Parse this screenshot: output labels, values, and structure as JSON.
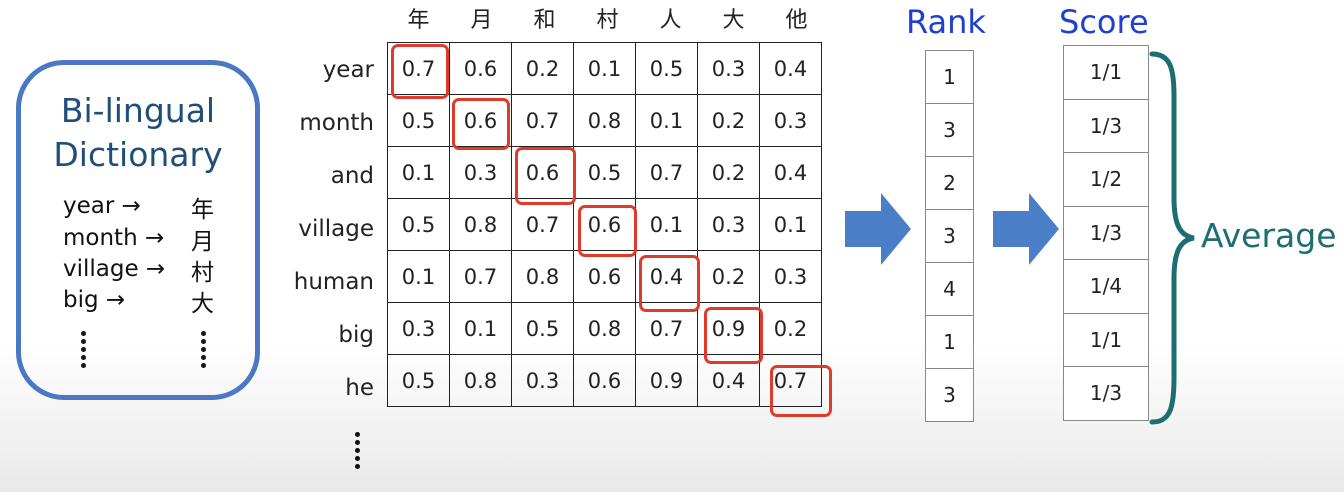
{
  "dictionary": {
    "title_line1": "Bi-lingual",
    "title_line2": "Dictionary",
    "entries": [
      {
        "en": "year →",
        "ja": "年"
      },
      {
        "en": "month →",
        "ja": "月"
      },
      {
        "en": "village →",
        "ja": "村"
      },
      {
        "en": "big →",
        "ja": "大"
      }
    ]
  },
  "matrix": {
    "columns": [
      "年",
      "月",
      "和",
      "村",
      "人",
      "大",
      "他"
    ],
    "rows": [
      {
        "label": "year",
        "values": [
          "0.7",
          "0.6",
          "0.2",
          "0.1",
          "0.5",
          "0.3",
          "0.4"
        ],
        "highlight_col": 0
      },
      {
        "label": "month",
        "values": [
          "0.5",
          "0.6",
          "0.7",
          "0.8",
          "0.1",
          "0.2",
          "0.3"
        ],
        "highlight_col": 1
      },
      {
        "label": "and",
        "values": [
          "0.1",
          "0.3",
          "0.6",
          "0.5",
          "0.7",
          "0.2",
          "0.4"
        ],
        "highlight_col": 2
      },
      {
        "label": "village",
        "values": [
          "0.5",
          "0.8",
          "0.7",
          "0.6",
          "0.1",
          "0.3",
          "0.1"
        ],
        "highlight_col": 3
      },
      {
        "label": "human",
        "values": [
          "0.1",
          "0.7",
          "0.8",
          "0.6",
          "0.4",
          "0.2",
          "0.3"
        ],
        "highlight_col": 4
      },
      {
        "label": "big",
        "values": [
          "0.3",
          "0.1",
          "0.5",
          "0.8",
          "0.7",
          "0.9",
          "0.2"
        ],
        "highlight_col": 5
      },
      {
        "label": "he",
        "values": [
          "0.5",
          "0.8",
          "0.3",
          "0.6",
          "0.9",
          "0.4",
          "0.7"
        ],
        "highlight_col": 6
      }
    ]
  },
  "rank": {
    "title": "Rank",
    "values": [
      "1",
      "3",
      "2",
      "3",
      "4",
      "1",
      "3"
    ]
  },
  "score": {
    "title": "Score",
    "values": [
      "1/1",
      "1/3",
      "1/2",
      "1/3",
      "1/4",
      "1/1",
      "1/3"
    ]
  },
  "average_label": "Average",
  "colors": {
    "dictionary_border": "#4a78c2",
    "dictionary_title": "#1f4e79",
    "highlight": "#e03a2a",
    "arrow": "#4a7fc8",
    "header_blue": "#1f3fd0",
    "brace": "#1c6e72"
  }
}
